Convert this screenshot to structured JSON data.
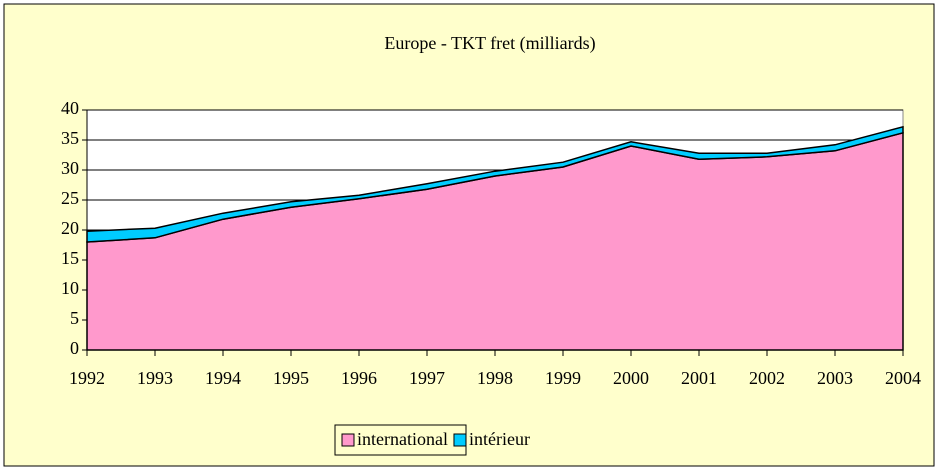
{
  "chart_data": {
    "type": "stacked_area",
    "title": "Europe - TKT fret (milliards)",
    "categories": [
      "1992",
      "1993",
      "1994",
      "1995",
      "1996",
      "1997",
      "1998",
      "1999",
      "2000",
      "2001",
      "2002",
      "2003",
      "2004"
    ],
    "series": [
      {
        "name": "international",
        "color": "#ff99cc",
        "values": [
          18,
          18.7,
          21.8,
          23.8,
          25.2,
          26.8,
          29,
          30.5,
          34,
          31.8,
          32.2,
          33.2,
          36.2
        ]
      },
      {
        "name": "intérieur",
        "color": "#00ccff",
        "values": [
          1.8,
          1.6,
          1.0,
          0.9,
          0.6,
          0.9,
          0.8,
          0.8,
          0.7,
          1.0,
          0.6,
          1.0,
          1.0
        ]
      }
    ],
    "ylim": [
      0,
      40
    ],
    "yticks": [
      0,
      5,
      10,
      15,
      20,
      25,
      30,
      35,
      40
    ],
    "grid": true,
    "legend": "bottom"
  }
}
